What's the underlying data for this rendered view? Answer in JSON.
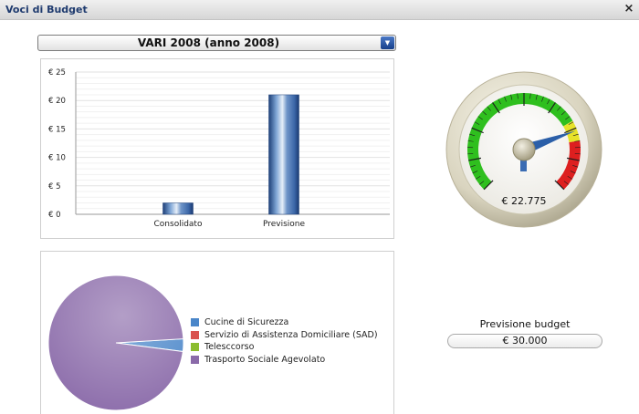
{
  "window": {
    "title": "Voci di Budget",
    "close_label": "×"
  },
  "selector": {
    "value": "VARI 2008 (anno 2008)"
  },
  "bar_chart": {
    "chart_data": {
      "type": "bar",
      "categories": [
        "Consolidato",
        "Previsione"
      ],
      "values": [
        2,
        21
      ],
      "ylim": [
        0,
        25
      ],
      "yticks": [
        0,
        5,
        10,
        15,
        20,
        25
      ],
      "ytick_labels": [
        "€ 0",
        "€ 5",
        "€ 10",
        "€ 15",
        "€ 20",
        "€ 25"
      ],
      "grid": true
    }
  },
  "gauge": {
    "value_text": "€ 22.775",
    "value": 22775,
    "max": 30000,
    "zones": [
      {
        "color": "#2fbf1e",
        "from": 0,
        "to": 0.72
      },
      {
        "color": "#e7e22a",
        "from": 0.72,
        "to": 0.8
      },
      {
        "color": "#dd1f1f",
        "from": 0.8,
        "to": 1.0
      }
    ]
  },
  "budget": {
    "label": "Previsione budget",
    "value": "€ 30.000"
  },
  "pie_chart": {
    "chart_data": {
      "type": "pie",
      "labels": [
        "Cucine di Sicurezza",
        "Servizio di Assistenza Domiciliare (SAD)",
        "Telesccorso",
        "Trasporto Sociale Agevolato"
      ],
      "values": [
        3,
        0,
        0,
        97
      ],
      "colors": [
        "#4a86c9",
        "#d9534f",
        "#8bbd2f",
        "#8a6aa9"
      ]
    }
  }
}
